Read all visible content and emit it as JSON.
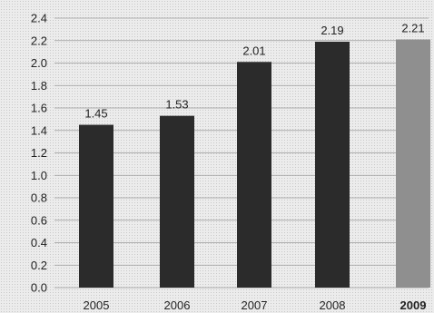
{
  "chart_data": {
    "type": "bar",
    "categories": [
      "2005",
      "2006",
      "2007",
      "2008",
      "2009"
    ],
    "values": [
      1.45,
      1.53,
      2.01,
      2.19,
      2.21
    ],
    "data_labels": [
      "1.45",
      "1.53",
      "2.01",
      "2.19",
      "2.21"
    ],
    "highlight_category": "2009",
    "ylim": [
      0,
      2.4
    ],
    "yticks": [
      "0.0",
      "0.2",
      "0.4",
      "0.6",
      "0.8",
      "1.0",
      "1.2",
      "1.4",
      "1.6",
      "1.8",
      "2.0",
      "2.2",
      "2.4"
    ],
    "title": "",
    "xlabel": "",
    "ylabel": "",
    "grid": true,
    "colors": {
      "bar": "#2b2b2b",
      "highlight": "#8f8f8f"
    }
  }
}
